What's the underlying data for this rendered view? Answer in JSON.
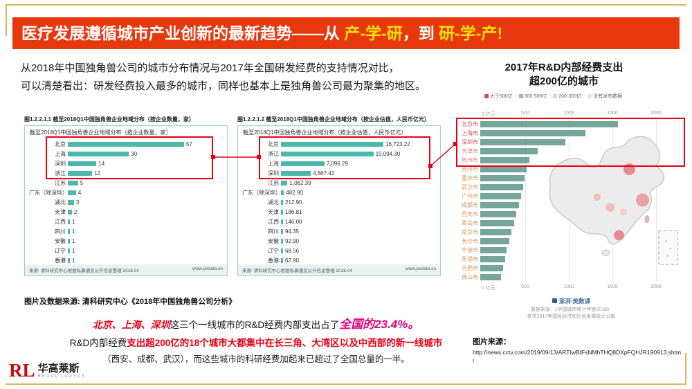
{
  "title": {
    "prefix": "医疗发展遵循城市产业创新的最新趋势——从 ",
    "highlight1": "产-学-研",
    "middle": "，到 ",
    "highlight2": "研-学-产",
    "suffix": "!"
  },
  "intro": {
    "line1": "从2018年中国独角兽公司的城市分布情况与2017年全国研发经费的支持情况对比，",
    "line2": "可以清楚看出：研发经费投入最多的城市，同样也基本上是独角兽公司最为聚集的地区。"
  },
  "colors": {
    "title_red": "#e8380d",
    "highlight_yellow": "#ffe100",
    "unicorn_bar_teal": "#4cb8ab",
    "rd_bar_teal": "#689e92",
    "highlight_box_red": "#e60012",
    "big_number_pink": "#e4007f"
  },
  "chart_data": [
    {
      "id": "unicorn_count",
      "type": "bar",
      "orientation": "horizontal",
      "title": "图1.2.2.1.1 截至2018Q1中国独角兽企业地域分布（按企业数量，家）",
      "subtitle": "截至2018Q1中国独角兽企业地域分布（按企业数量，家）",
      "categories": [
        "北京",
        "上海",
        "深圳",
        "浙江",
        "江苏",
        "广东（除深圳）",
        "湖北",
        "天津",
        "江西",
        "四川",
        "安徽",
        "辽宁",
        "香港"
      ],
      "values": [
        57,
        30,
        14,
        12,
        5,
        4,
        3,
        2,
        1,
        1,
        1,
        1,
        1
      ],
      "value_labels": [
        "57",
        "30",
        "14",
        "12",
        "5",
        "4",
        "3",
        "2",
        "1",
        "1",
        "1",
        "1",
        "1"
      ],
      "xlim": [
        0,
        60
      ],
      "grid": false,
      "highlight_rows": 4,
      "source": "来源: 清科研究中心根据私募通及公开信息整理 2018.04",
      "source_site": "www.pedata.cn"
    },
    {
      "id": "unicorn_valuation",
      "type": "bar",
      "orientation": "horizontal",
      "title": "图1.2.2.1.2 截至2018Q1中国独角兽企业地域分布（按企业估值，人民币亿元）",
      "subtitle": "截至2018Q1中国独角兽企业地域分布（按企业估值，人民币亿元）",
      "categories": [
        "北京",
        "浙江",
        "上海",
        "深圳",
        "江苏",
        "广东（除深圳）",
        "湖北",
        "天津",
        "江西",
        "四川",
        "安徽",
        "辽宁",
        "香港"
      ],
      "values": [
        16723.22,
        15094.3,
        7096.29,
        4867.42,
        1062.39,
        482.9,
        212.9,
        186.81,
        146.0,
        94.35,
        92.9,
        68.56,
        62.9
      ],
      "value_labels": [
        "16,723.22",
        "15,094.30",
        "7,096.29",
        "4,867.42",
        "1,062.39",
        "482.90",
        "212.90",
        "186.81",
        "146.00",
        "94.35",
        "92.90",
        "68.56",
        "62.90"
      ],
      "xlim": [
        0,
        18000
      ],
      "grid": false,
      "highlight_rows": 4,
      "source": "来源: 清科研究中心根据私募通及公开信息整理 2018.04",
      "source_site": "www.pedata.cn"
    },
    {
      "id": "rd_expenditure_2017",
      "type": "bar",
      "orientation": "horizontal",
      "title": "2017年R&D内部经费支出",
      "title_line2": "超200亿的城市",
      "legend": [
        {
          "label": "大于500亿",
          "color": "#cf4a63"
        },
        {
          "label": "300-500亿",
          "color": "#e79aa8"
        },
        {
          "label": "200-300亿",
          "color": "#f4cdb4"
        },
        {
          "label": "没有发布数据",
          "color": "#e8e8e8"
        }
      ],
      "categories": [
        "北京市",
        "上海市",
        "深圳市",
        "天津市",
        "杭州市",
        "苏州市",
        "重庆市",
        "武汉市",
        "广州市",
        "成都市",
        "西安市",
        "青岛市",
        "南京市",
        "长沙市",
        "宁波市",
        "无锡市",
        "合肥市",
        "佛山市"
      ],
      "values": [
        1580,
        1205,
        977,
        655,
        560,
        535,
        510,
        490,
        470,
        445,
        415,
        385,
        355,
        330,
        305,
        285,
        260,
        235
      ],
      "city_label_colors": [
        "#d14f5e",
        "#d14f5e",
        "#d14f5e",
        "#df838d",
        "#df838d",
        "#d79a62",
        "#d79a62",
        "#d79a62",
        "#d79a62",
        "#d79a62",
        "#d79a62",
        "#d79a62",
        "#d79a62",
        "#d79a62",
        "#d79a62",
        "#d79a62",
        "#d79a62",
        "#d79a62"
      ],
      "xlim": [
        0,
        2000
      ],
      "grid": true,
      "axis_ticks": [
        "0 亿元",
        "500",
        "1000",
        "1500",
        "2000"
      ],
      "highlight_rows": 5,
      "logo": "澎湃·美数课",
      "source_line1": "数据来源：《中国城市统计年鉴2018》",
      "source_line2": "各市2017年国民经济和社会发展统计公报"
    }
  ],
  "caption": "图片及数据来源: 清科研究中心《2018年中国独角兽公司分析》",
  "conclusion": {
    "line1_red": "北京、上海、深圳",
    "line1_black": "这三个一线城市的R&D经费内部支出占了",
    "line1_big": "全国的23.4%。",
    "line2_black": "R&D内部经费",
    "line2_red": "支出超200亿的18个城市大都集中在长三角、大湾区以及中西部的新一线城市",
    "line3": "（西安、成都、武汉），而这些城市的科研经费加起来已超过了全国总量的一半。"
  },
  "image_source": {
    "label": "图片来源：",
    "url": "http://news.cctv.com/2019/09/13/ARTIwBtFsNMhTHQ8DXpFQHJR190913.shtml"
  },
  "logo": {
    "initials": "RL",
    "name": "华高莱斯",
    "sub": "REGAL LLOYDS"
  }
}
